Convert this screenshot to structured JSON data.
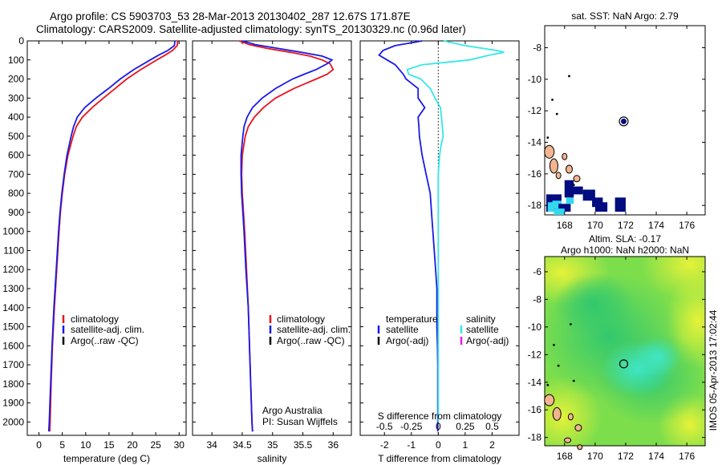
{
  "titles": {
    "line1": "Argo profile: CS 5903703_53 28-Mar-2013 20130402_287 12.67S 171.87E",
    "line2": "Climatology: CARS2009. Satellite-adjusted climatology: synTS_20130329.nc (0.96d later)"
  },
  "colors": {
    "climatology": "#e8141e",
    "satellite": "#1a1ae8",
    "argo": "#000000",
    "sat_salinity": "#33e8e8",
    "argo_adj_salinity": "#e81ae8"
  },
  "chart_data": [
    {
      "id": "temperature",
      "type": "line",
      "xlabel": "temperature (deg C)",
      "ylabel": "",
      "xlim": [
        -2.5,
        31.5
      ],
      "ylim": [
        2070,
        0
      ],
      "xticks": [
        0,
        5,
        10,
        15,
        20,
        25,
        30
      ],
      "xtick_labels": [
        "0",
        "5",
        "10",
        "15",
        "20",
        "25",
        "30"
      ],
      "yticks": [
        0,
        100,
        200,
        300,
        400,
        500,
        600,
        700,
        800,
        900,
        1000,
        1100,
        1200,
        1300,
        1400,
        1500,
        1600,
        1700,
        1800,
        1900,
        2000
      ],
      "ytick_labels": [
        "0",
        "100",
        "200",
        "300",
        "400",
        "500",
        "600",
        "700",
        "800",
        "900",
        "1000",
        "1100",
        "1200",
        "1300",
        "1400",
        "1500",
        "1600",
        "1700",
        "1800",
        "1900",
        "2000"
      ],
      "legend": {
        "placement": "bottom-left",
        "entries": [
          "climatology",
          "satellite-adj. clim.",
          "Argo(..raw -QC)"
        ]
      },
      "series": [
        {
          "name": "climatology",
          "color_key": "climatology",
          "y": [
            0,
            25,
            50,
            75,
            100,
            150,
            200,
            250,
            300,
            350,
            400,
            450,
            500,
            600,
            700,
            800,
            900,
            1000,
            1200,
            1400,
            1600,
            1800,
            2000,
            2050
          ],
          "x": [
            29.7,
            29.6,
            28.6,
            27.0,
            25.2,
            21.8,
            18.8,
            16.3,
            13.8,
            11.4,
            9.3,
            8.0,
            7.3,
            6.2,
            5.5,
            5.0,
            4.6,
            4.3,
            3.8,
            3.3,
            2.9,
            2.6,
            2.4,
            2.3
          ]
        },
        {
          "name": "satellite-adj. clim.",
          "color_key": "satellite",
          "y": [
            0,
            25,
            50,
            75,
            100,
            150,
            200,
            250,
            300,
            350,
            400,
            450,
            500,
            600,
            700,
            800,
            900,
            1000,
            1200,
            1400,
            1600,
            1800,
            2000,
            2050
          ],
          "x": [
            29.1,
            29.0,
            27.6,
            25.6,
            23.8,
            20.3,
            17.4,
            14.9,
            12.2,
            9.8,
            8.2,
            7.4,
            6.9,
            6.0,
            5.4,
            4.9,
            4.5,
            4.2,
            3.7,
            3.2,
            2.8,
            2.5,
            2.2,
            2.1
          ]
        }
      ]
    },
    {
      "id": "salinity",
      "type": "line",
      "xlabel": "salinity",
      "ylabel": "",
      "xlim": [
        33.68,
        36.3
      ],
      "ylim": [
        2070,
        0
      ],
      "xticks": [
        34,
        34.5,
        35,
        35.5,
        36
      ],
      "xtick_labels": [
        "34",
        "34.5",
        "35",
        "35.5",
        "36"
      ],
      "legend": {
        "placement": "bottom-center",
        "entries": [
          "climatology",
          "satellite-adj. clim.",
          "Argo(..raw -QC)"
        ]
      },
      "annotations": [
        "Argo Australia",
        "PI: Susan Wijffels"
      ],
      "series": [
        {
          "name": "climatology",
          "color_key": "climatology",
          "y": [
            0,
            20,
            40,
            60,
            80,
            100,
            120,
            150,
            175,
            200,
            250,
            300,
            350,
            400,
            450,
            500,
            600,
            700,
            800,
            900,
            1000,
            1200,
            1400,
            1600,
            1800,
            2000,
            2050
          ],
          "x": [
            34.45,
            34.62,
            34.92,
            35.3,
            35.62,
            35.82,
            35.95,
            36.0,
            35.9,
            35.72,
            35.35,
            35.05,
            34.85,
            34.7,
            34.6,
            34.55,
            34.5,
            34.49,
            34.5,
            34.52,
            34.54,
            34.57,
            34.6,
            34.62,
            34.64,
            34.66,
            34.67
          ]
        },
        {
          "name": "satellite-adj. clim.",
          "color_key": "satellite",
          "y": [
            0,
            20,
            40,
            60,
            80,
            100,
            120,
            150,
            175,
            200,
            250,
            300,
            350,
            400,
            450,
            500,
            600,
            700,
            800,
            900,
            1000,
            1200,
            1400,
            1600,
            1800,
            2000,
            2050
          ],
          "x": [
            34.5,
            34.72,
            35.1,
            35.48,
            35.82,
            35.98,
            35.9,
            35.72,
            35.52,
            35.33,
            35.05,
            34.83,
            34.67,
            34.58,
            34.53,
            34.51,
            34.48,
            34.48,
            34.49,
            34.51,
            34.53,
            34.56,
            34.6,
            34.62,
            34.64,
            34.66,
            34.67
          ]
        }
      ]
    },
    {
      "id": "difference",
      "type": "line",
      "xlabel": "T difference from climatology",
      "xlabel2": "S difference from climatology",
      "xlim": [
        -2.9,
        3.0
      ],
      "ylim": [
        2070,
        0
      ],
      "xticks": [
        -2,
        -1,
        0,
        1,
        2
      ],
      "xtick_labels": [
        "-2",
        "-1",
        "0",
        "1",
        "2"
      ],
      "xticks_top": [
        -2,
        -1,
        0,
        1,
        2
      ],
      "xtick_labels_top": [
        "-0.5",
        "-0.25",
        "0",
        "0.25",
        "0.5"
      ],
      "legend": {
        "placement": "bottom-center",
        "columns": [
          {
            "title": "temperature",
            "entries": [
              "satellite",
              "Argo(-adj)"
            ]
          },
          {
            "title": "salinity",
            "entries": [
              "satellite",
              "Argo(-adj)"
            ]
          }
        ]
      },
      "series": [
        {
          "name": "temperature satellite",
          "color_key": "satellite",
          "y": [
            0,
            25,
            50,
            75,
            100,
            125,
            150,
            175,
            200,
            250,
            300,
            350,
            400,
            450,
            500,
            550,
            600,
            700,
            800,
            900,
            1000,
            1100,
            1200,
            1300,
            1400,
            1500,
            1600,
            1700,
            1800,
            1900,
            2000,
            2050
          ],
          "x": [
            -0.6,
            -1.6,
            -2.05,
            -2.2,
            -1.9,
            -1.6,
            -1.45,
            -1.3,
            -1.2,
            -0.75,
            -0.75,
            -0.5,
            -0.75,
            -0.72,
            -0.7,
            -0.65,
            -0.6,
            -0.45,
            -0.3,
            -0.25,
            -0.2,
            -0.15,
            -0.1,
            -0.05,
            -0.05,
            -0.05,
            -0.03,
            -0.02,
            -0.02,
            -0.02,
            -0.02,
            -0.02
          ]
        },
        {
          "name": "salinity satellite",
          "color_key": "sat_salinity",
          "y": [
            0,
            25,
            50,
            60,
            75,
            100,
            125,
            150,
            175,
            200,
            250,
            300,
            350,
            400,
            450,
            500,
            550,
            600,
            700,
            800,
            900,
            1000,
            1200,
            1400,
            1600,
            1800,
            2000
          ],
          "x": [
            0.2,
            1.0,
            2.15,
            2.45,
            1.9,
            1.15,
            -0.6,
            -1.15,
            -1.1,
            -0.65,
            -0.3,
            -0.12,
            0.08,
            0.12,
            0.15,
            0.18,
            0.1,
            0.05,
            0.0,
            0.0,
            0.0,
            0.0,
            0.0,
            0.0,
            0.0,
            0.0,
            0.0
          ]
        }
      ]
    },
    {
      "id": "sst_map",
      "type": "heatmap",
      "title": "sat. SST: NaN Argo: 2.79",
      "xlim": [
        166.7,
        177.2
      ],
      "ylim": [
        -18.6,
        -6.6
      ],
      "xticks": [
        168,
        170,
        172,
        174,
        176
      ],
      "xtick_labels": [
        "168",
        "170",
        "172",
        "174",
        "176"
      ],
      "yticks": [
        -8,
        -10,
        -12,
        -14,
        -16,
        -18
      ],
      "ytick_labels": [
        "-8",
        "-10",
        "-12",
        "-14",
        "-16",
        "-18"
      ],
      "marker": {
        "lon": 171.87,
        "lat": -12.67
      }
    },
    {
      "id": "sla_map",
      "type": "heatmap",
      "title": "Altim. SLA: -0.17",
      "subtitle": "Argo h1000: NaN h2000: NaN",
      "xlim": [
        166.7,
        177.2
      ],
      "ylim": [
        -18.6,
        -4.9
      ],
      "xticks": [
        168,
        170,
        172,
        174,
        176
      ],
      "xtick_labels": [
        "168",
        "170",
        "172",
        "174",
        "176"
      ],
      "yticks": [
        -6,
        -8,
        -10,
        -12,
        -14,
        -16,
        -18
      ],
      "ytick_labels": [
        "-6",
        "-8",
        "-10",
        "-12",
        "-14",
        "-16",
        "-18"
      ],
      "marker": {
        "lon": 171.87,
        "lat": -12.67
      }
    }
  ],
  "footer": {
    "stamp": "IMOS 05-Apr-2013 17:02:44"
  }
}
